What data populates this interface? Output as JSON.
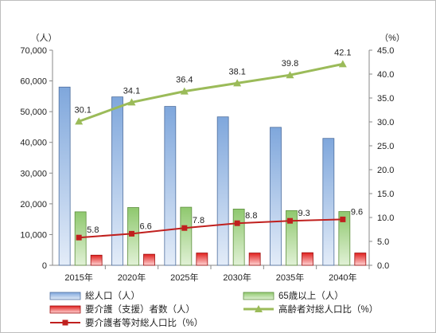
{
  "chart_data": {
    "type": "bar",
    "categories": [
      "2015年",
      "2020年",
      "2025年",
      "2030年",
      "2035年",
      "2040年"
    ],
    "y_left": {
      "unit_label": "（人）",
      "lim": [
        0,
        70000
      ],
      "tick_labels": [
        "0",
        "10,000",
        "20,000",
        "30,000",
        "40,000",
        "50,000",
        "60,000",
        "70,000"
      ]
    },
    "y_right": {
      "unit_label": "（%）",
      "lim": [
        0,
        45
      ],
      "tick_labels": [
        "0.0",
        "5.0",
        "10.0",
        "15.0",
        "20.0",
        "25.0",
        "30.0",
        "35.0",
        "40.0",
        "45.0"
      ]
    },
    "series": [
      {
        "name": "総人口（人）",
        "type": "bar",
        "axis": "left",
        "color": "#8db3e2",
        "values": [
          58000,
          54800,
          51700,
          48300,
          44900,
          41300
        ]
      },
      {
        "name": "65歳以上（人）",
        "type": "bar",
        "axis": "left",
        "color": "#8fc86e",
        "values": [
          17400,
          18800,
          18900,
          18300,
          17800,
          17500
        ]
      },
      {
        "name": "要介護（支援）者数（人）",
        "type": "bar",
        "axis": "left",
        "color": "#e0201e",
        "values": [
          3300,
          3600,
          4000,
          4000,
          4100,
          4000
        ]
      },
      {
        "name": "高齢者対総人口比（%）",
        "type": "line",
        "axis": "right",
        "color": "#9bbb59",
        "values": [
          30.1,
          34.1,
          36.4,
          38.1,
          39.8,
          42.1
        ],
        "labels": [
          "30.1",
          "34.1",
          "36.4",
          "38.1",
          "39.8",
          "42.1"
        ]
      },
      {
        "name": "要介護者等対総人口比（%）",
        "type": "line",
        "axis": "right",
        "color": "#c0201e",
        "values": [
          5.8,
          6.6,
          7.8,
          8.8,
          9.3,
          9.6
        ],
        "labels": [
          "5.8",
          "6.6",
          "7.8",
          "8.8",
          "9.3",
          "9.6"
        ]
      }
    ],
    "grid": false,
    "legend_placement": "bottom"
  }
}
